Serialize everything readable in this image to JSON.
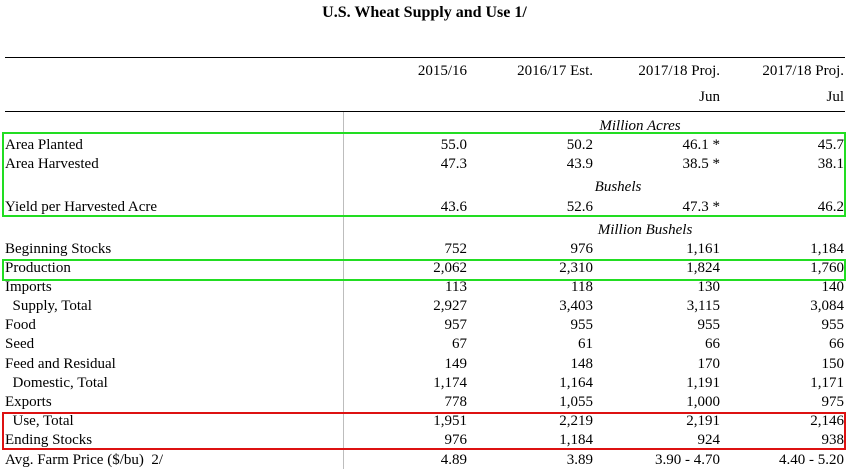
{
  "title": "U.S. Wheat Supply and Use  1/",
  "columns": [
    {
      "line1": "2015/16",
      "line2": ""
    },
    {
      "line1": "2016/17 Est.",
      "line2": ""
    },
    {
      "line1": "2017/18 Proj.",
      "line2": "Jun"
    },
    {
      "line1": "2017/18 Proj.",
      "line2": "Jul"
    }
  ],
  "units": {
    "acres": "Million Acres",
    "bushels": "Bushels",
    "million_bushels": "Million Bushels"
  },
  "rows": [
    {
      "label": "Area Planted",
      "v": [
        "55.0",
        "50.2",
        "46.1 *",
        "45.7"
      ]
    },
    {
      "label": "Area Harvested",
      "v": [
        "47.3",
        "43.9",
        "38.5 *",
        "38.1"
      ]
    },
    {
      "label": "Yield per Harvested Acre",
      "v": [
        "43.6",
        "52.6",
        "47.3 *",
        "46.2"
      ]
    },
    {
      "label": "Beginning Stocks",
      "v": [
        "752",
        "976",
        "1,161",
        "1,184"
      ]
    },
    {
      "label": "Production",
      "v": [
        "2,062",
        "2,310",
        "1,824",
        "1,760"
      ]
    },
    {
      "label": "Imports",
      "v": [
        "113",
        "118",
        "130",
        "140"
      ]
    },
    {
      "label": "  Supply, Total",
      "v": [
        "2,927",
        "3,403",
        "3,115",
        "3,084"
      ]
    },
    {
      "label": "Food",
      "v": [
        "957",
        "955",
        "955",
        "955"
      ]
    },
    {
      "label": "Seed",
      "v": [
        "67",
        "61",
        "66",
        "66"
      ]
    },
    {
      "label": "Feed and Residual",
      "v": [
        "149",
        "148",
        "170",
        "150"
      ]
    },
    {
      "label": "  Domestic, Total",
      "v": [
        "1,174",
        "1,164",
        "1,191",
        "1,171"
      ]
    },
    {
      "label": "Exports",
      "v": [
        "778",
        "1,055",
        "1,000",
        "975"
      ]
    },
    {
      "label": "  Use, Total",
      "v": [
        "1,951",
        "2,219",
        "2,191",
        "2,146"
      ]
    },
    {
      "label": "Ending Stocks",
      "v": [
        "976",
        "1,184",
        "924",
        "938"
      ]
    },
    {
      "label": "Avg. Farm Price ($/bu)  2/",
      "v": [
        "4.89",
        "3.89",
        "3.90 - 4.70",
        "4.40 - 5.20"
      ]
    }
  ],
  "highlight_colors": {
    "green": "#22dd22",
    "red": "#dd1111"
  }
}
